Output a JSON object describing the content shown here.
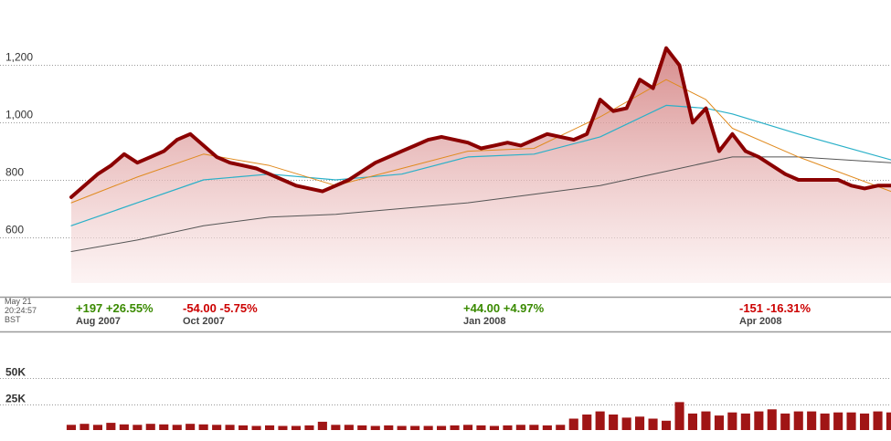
{
  "timestamp": {
    "date": "May 21",
    "time": "20:24:57",
    "zone": "BST"
  },
  "periods": [
    {
      "change": "+197",
      "pct": "+26.55%",
      "label": "Aug 2007",
      "direction": "up"
    },
    {
      "change": "-54.00",
      "pct": "-5.75%",
      "label": "Oct 2007",
      "direction": "down"
    },
    {
      "change": "+44.00",
      "pct": "+4.97%",
      "label": "Jan 2008",
      "direction": "up"
    },
    {
      "change": "-151",
      "pct": "-16.31%",
      "label": "Apr 2008",
      "direction": "down"
    }
  ],
  "colors": {
    "price": "#8b0000",
    "fill": "#d98a8a",
    "ma_fast": "#e08a1e",
    "ma_mid": "#2ab0c8",
    "ma_slow": "#555555",
    "volume": "#a01515",
    "up": "#3a8a00",
    "down": "#cc0000"
  },
  "chart_data": {
    "type": "line",
    "title": "",
    "yticks": [
      "1,200",
      "1,000",
      "800",
      "600"
    ],
    "yticks_values": [
      1200,
      1000,
      800,
      600
    ],
    "ylim": [
      440,
      1380
    ],
    "xlim": [
      0,
      62
    ],
    "volume_ticks": [
      "50K",
      "25K"
    ],
    "volume_ticks_values": [
      50000,
      25000
    ],
    "volume_ylim": [
      0,
      67000
    ],
    "grid": true,
    "series": [
      {
        "role": "price",
        "x": [
          0,
          1,
          2,
          3,
          4,
          5,
          6,
          7,
          8,
          9,
          10,
          11,
          12,
          13,
          14,
          15,
          16,
          17,
          18,
          19,
          20,
          21,
          22,
          23,
          24,
          25,
          26,
          27,
          28,
          29,
          30,
          31,
          32,
          33,
          34,
          35,
          36,
          37,
          38,
          39,
          40,
          41,
          42,
          43,
          44,
          45,
          46,
          47,
          48,
          49,
          50,
          51,
          52,
          53,
          54,
          55,
          56,
          57,
          58,
          59,
          60,
          61,
          62
        ],
        "values": [
          740,
          780,
          820,
          850,
          890,
          860,
          880,
          900,
          940,
          960,
          920,
          880,
          860,
          850,
          840,
          820,
          800,
          780,
          770,
          760,
          780,
          800,
          830,
          860,
          880,
          900,
          920,
          940,
          950,
          940,
          930,
          910,
          920,
          930,
          920,
          940,
          960,
          950,
          940,
          960,
          1080,
          1040,
          1050,
          1150,
          1120,
          1260,
          1200,
          1000,
          1050,
          900,
          960,
          900,
          880,
          850,
          820,
          800,
          800,
          800,
          800,
          780,
          770,
          780,
          780
        ]
      },
      {
        "role": "ma-fast",
        "x": [
          0,
          5,
          10,
          15,
          20,
          25,
          30,
          35,
          40,
          45,
          48,
          50,
          55,
          62
        ],
        "values": [
          720,
          810,
          890,
          850,
          780,
          840,
          900,
          910,
          1020,
          1150,
          1080,
          980,
          880,
          760
        ]
      },
      {
        "role": "ma-mid",
        "x": [
          0,
          5,
          10,
          15,
          20,
          25,
          30,
          35,
          40,
          45,
          48,
          50,
          55,
          62
        ],
        "values": [
          640,
          720,
          800,
          820,
          800,
          820,
          880,
          890,
          950,
          1060,
          1050,
          1030,
          960,
          870
        ]
      },
      {
        "role": "ma-slow",
        "x": [
          0,
          5,
          10,
          15,
          20,
          25,
          30,
          35,
          40,
          45,
          50,
          55,
          62
        ],
        "values": [
          550,
          590,
          640,
          670,
          680,
          700,
          720,
          750,
          780,
          830,
          880,
          880,
          860
        ]
      }
    ],
    "volume": {
      "x": [
        0,
        1,
        2,
        3,
        4,
        5,
        6,
        7,
        8,
        9,
        10,
        11,
        12,
        13,
        14,
        15,
        16,
        17,
        18,
        19,
        20,
        21,
        22,
        23,
        24,
        25,
        26,
        27,
        28,
        29,
        30,
        31,
        32,
        33,
        34,
        35,
        36,
        37,
        38,
        39,
        40,
        41,
        42,
        43,
        44,
        45,
        46,
        47,
        48,
        49,
        50,
        51,
        52,
        53,
        54,
        55,
        56,
        57,
        58,
        59,
        60,
        61,
        62
      ],
      "values": [
        5000,
        6000,
        5000,
        7000,
        5500,
        5000,
        6000,
        5500,
        5000,
        6000,
        5500,
        5000,
        5000,
        4500,
        4000,
        4500,
        4000,
        4000,
        4500,
        8000,
        5000,
        5000,
        4500,
        4000,
        4500,
        4000,
        4000,
        4000,
        4000,
        4500,
        5000,
        4500,
        4000,
        4500,
        5000,
        5000,
        4500,
        5000,
        11000,
        15000,
        18000,
        15000,
        12000,
        13000,
        11000,
        9000,
        27000,
        16000,
        18000,
        14000,
        17000,
        16000,
        18000,
        20000,
        16000,
        18000,
        18000,
        16000,
        17000,
        17000,
        16000,
        18000,
        17000
      ]
    }
  }
}
